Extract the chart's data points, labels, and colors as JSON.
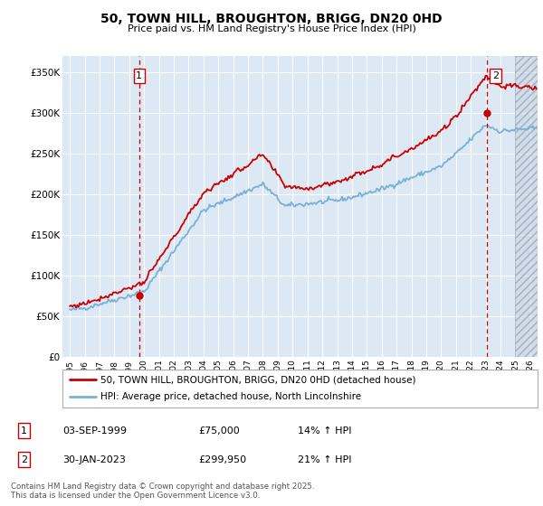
{
  "title": "50, TOWN HILL, BROUGHTON, BRIGG, DN20 0HD",
  "subtitle": "Price paid vs. HM Land Registry's House Price Index (HPI)",
  "ylabel_ticks": [
    "£0",
    "£50K",
    "£100K",
    "£150K",
    "£200K",
    "£250K",
    "£300K",
    "£350K"
  ],
  "ylabel_vals": [
    0,
    50000,
    100000,
    150000,
    200000,
    250000,
    300000,
    350000
  ],
  "ylim": [
    0,
    370000
  ],
  "xlim_start": 1994.5,
  "xlim_end": 2026.5,
  "sale1_year": 1999.67,
  "sale1_price": 75000,
  "sale1_label": "1",
  "sale1_date": "03-SEP-1999",
  "sale1_hpi_pct": "14% ↑ HPI",
  "sale2_year": 2023.08,
  "sale2_price": 299950,
  "sale2_label": "2",
  "sale2_date": "30-JAN-2023",
  "sale2_hpi_pct": "21% ↑ HPI",
  "legend_line1": "50, TOWN HILL, BROUGHTON, BRIGG, DN20 0HD (detached house)",
  "legend_line2": "HPI: Average price, detached house, North Lincolnshire",
  "footer": "Contains HM Land Registry data © Crown copyright and database right 2025.\nThis data is licensed under the Open Government Licence v3.0.",
  "plot_bg_color": "#dce9f5",
  "hpi_color": "#7ab0d4",
  "price_color": "#cc0000",
  "vline_color": "#cc0000",
  "grid_color": "#ffffff",
  "hatch_area_color": "#c8d4e0"
}
